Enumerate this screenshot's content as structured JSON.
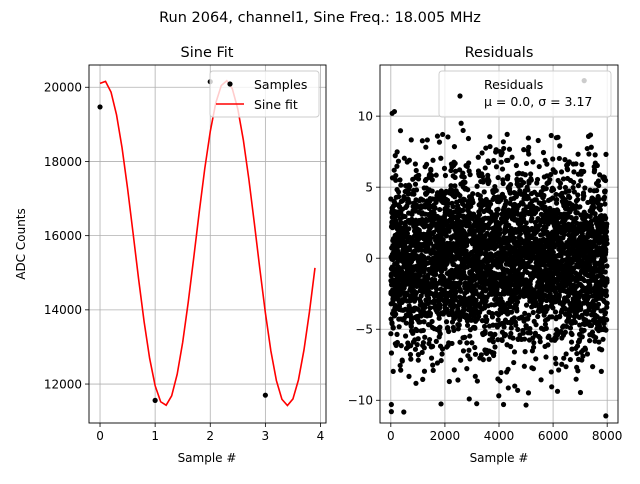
{
  "suptitle": "Run 2064, channel1, Sine Freq.: 18.005 MHz",
  "colors": {
    "samples": "#000000",
    "fit": "#ff0000",
    "grid": "#b0b0b0",
    "residuals": "#000000"
  },
  "chart_data": [
    {
      "type": "line",
      "title": "Sine Fit",
      "xlabel": "Sample #",
      "ylabel": "ADC Counts",
      "xlim": [
        -0.2,
        4.1
      ],
      "ylim": [
        10950,
        20600
      ],
      "xticks": [
        0,
        1,
        2,
        3,
        4
      ],
      "yticks": [
        12000,
        14000,
        16000,
        18000,
        20000
      ],
      "grid": true,
      "legend": "top-right",
      "series": [
        {
          "name": "Samples",
          "kind": "scatter",
          "x": [
            0,
            1,
            2,
            3
          ],
          "y": [
            19470,
            11560,
            20150,
            11700
          ]
        },
        {
          "name": "Sine fit",
          "kind": "line",
          "fit": {
            "offset": 15800,
            "amplitude": 4380,
            "period": 2.222,
            "phase": 1.385
          },
          "x_range": [
            0,
            3.9
          ]
        }
      ]
    },
    {
      "type": "scatter",
      "title": "Residuals",
      "xlabel": "Sample #",
      "ylabel": "",
      "xlim": [
        -400,
        8400
      ],
      "ylim": [
        -11.6,
        13.6
      ],
      "xticks": [
        0,
        2000,
        4000,
        6000,
        8000
      ],
      "yticks": [
        -10,
        -5,
        0,
        5,
        10
      ],
      "grid": true,
      "legend": "top-right",
      "legend_entry": {
        "label": "Residuals",
        "stats": "μ = 0.0, σ = 3.17"
      },
      "n_points": 8000,
      "mean": 0.0,
      "sigma": 3.17,
      "notable_points": [
        [
          20,
          -10.3
        ],
        [
          20,
          -10.8
        ],
        [
          7950,
          -11.1
        ],
        [
          7150,
          12.5
        ],
        [
          50,
          10.2
        ],
        [
          2600,
          9.5
        ]
      ]
    }
  ]
}
